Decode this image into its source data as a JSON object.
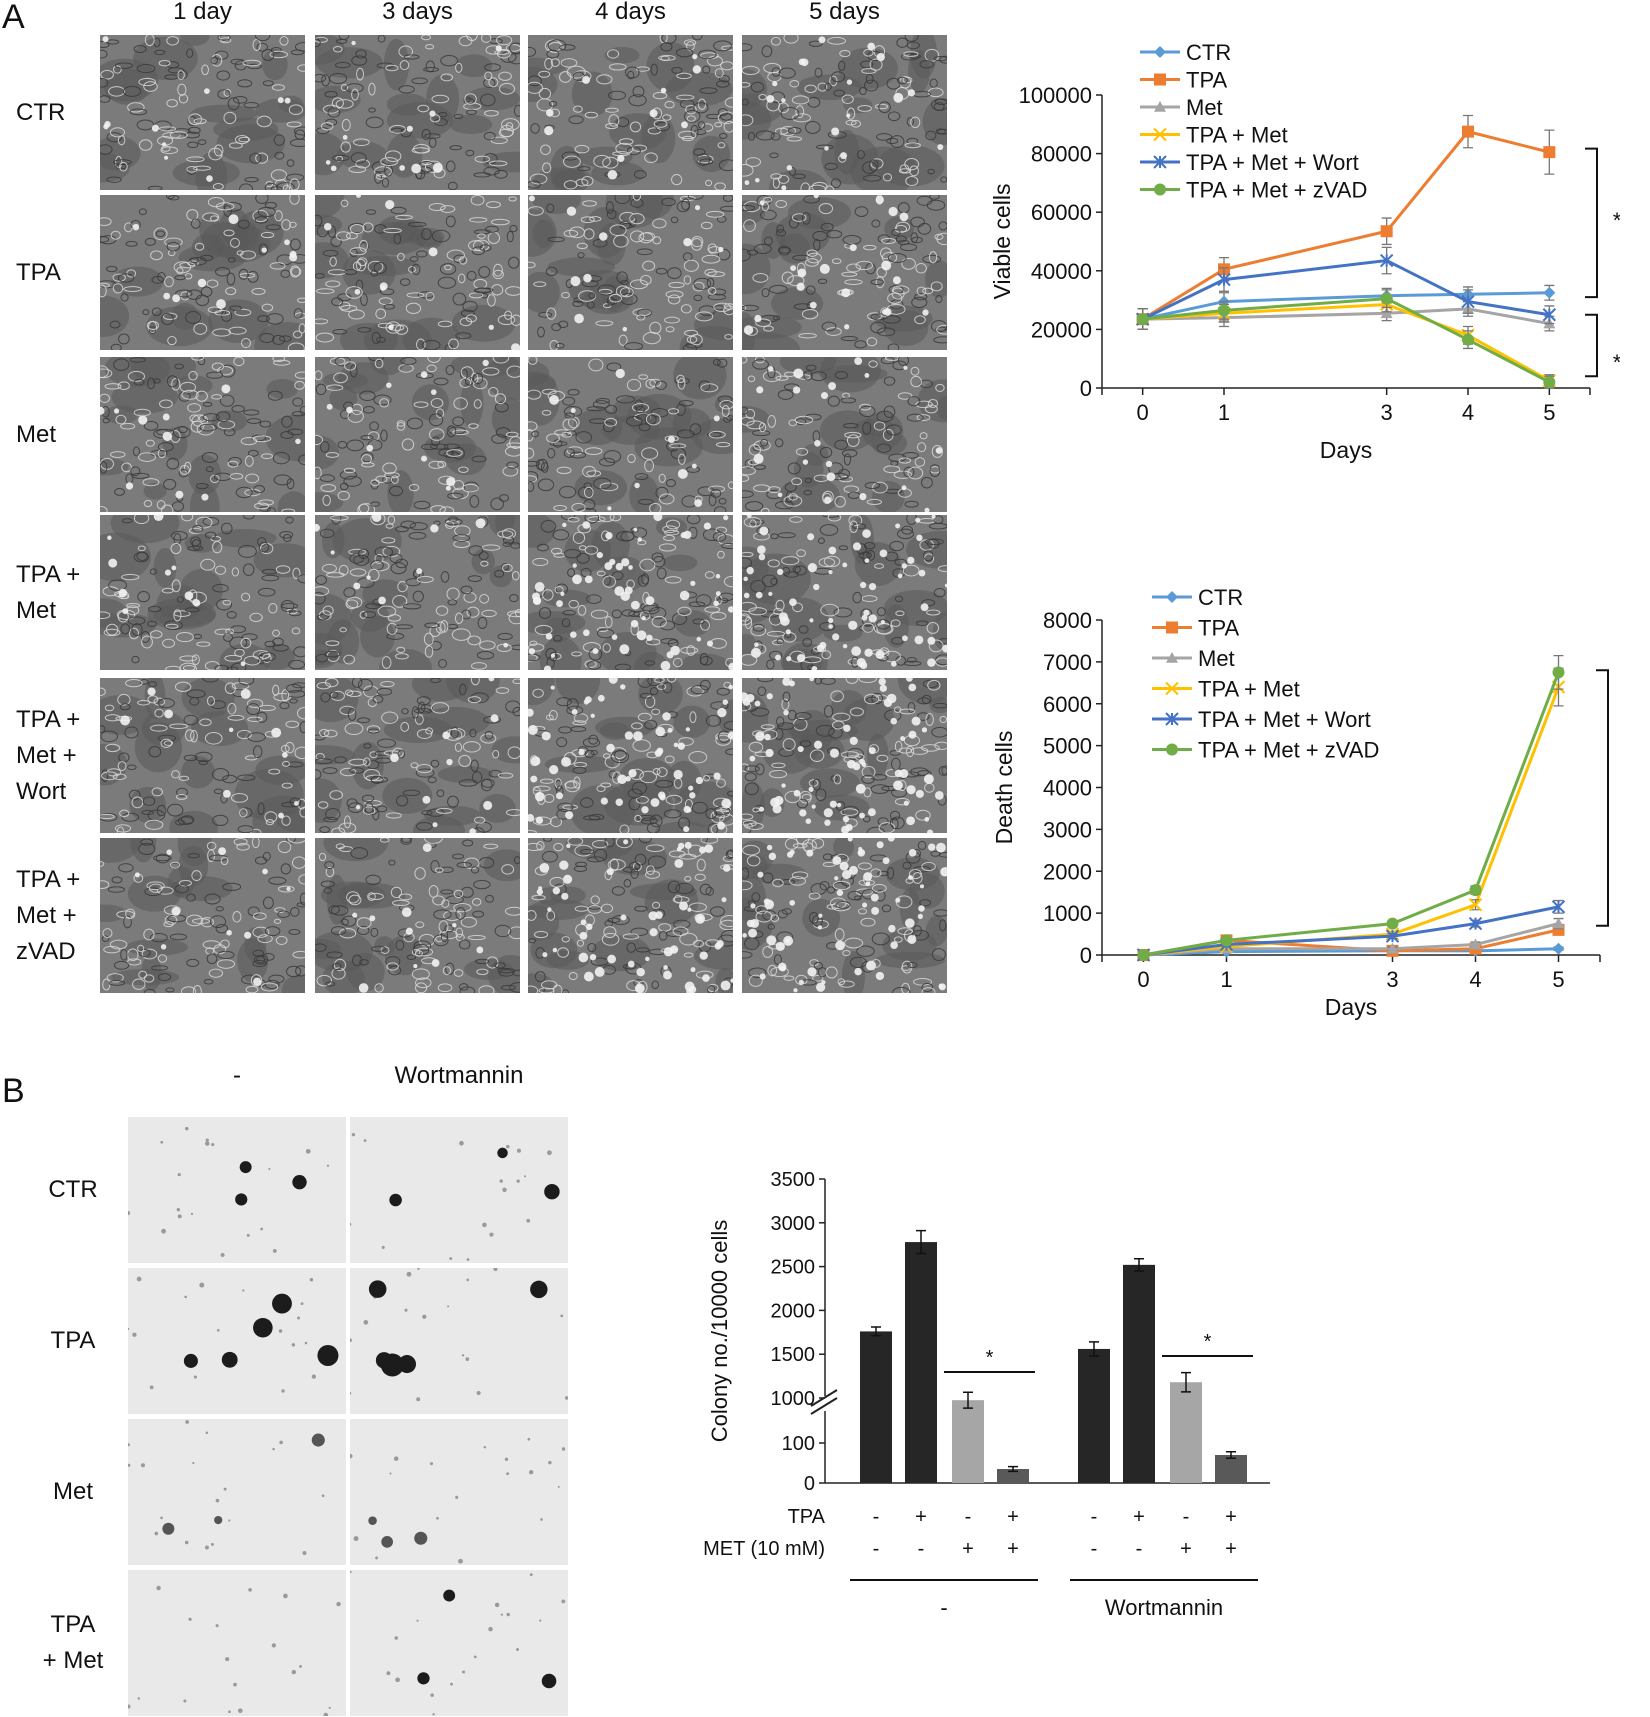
{
  "panel_a": {
    "letter": "A",
    "columns": [
      "1 day",
      "3 days",
      "4 days",
      "5 days"
    ],
    "rows": [
      {
        "lines": [
          "CTR"
        ]
      },
      {
        "lines": [
          "TPA"
        ]
      },
      {
        "lines": [
          "Met"
        ]
      },
      {
        "lines": [
          "TPA +",
          "Met"
        ]
      },
      {
        "lines": [
          "TPA +",
          "Met +",
          "Wort"
        ]
      },
      {
        "lines": [
          "TPA +",
          "Met +",
          "zVAD"
        ]
      }
    ]
  },
  "panel_b": {
    "letter": "B",
    "columns": [
      "-",
      "Wortmannin"
    ],
    "rows": [
      {
        "lines": [
          "CTR"
        ]
      },
      {
        "lines": [
          "TPA"
        ]
      },
      {
        "lines": [
          "Met"
        ]
      },
      {
        "lines": [
          "TPA",
          "+ Met"
        ]
      }
    ]
  },
  "colors": {
    "CTR": "#5b9bd5",
    "TPA": "#ed7d31",
    "Met": "#a5a5a5",
    "TPA + Met": "#ffc000",
    "TPA + Met + Wort": "#4472c4",
    "TPA + Met + zVAD": "#70ad47",
    "bar_dark": "#262626",
    "bar_light": "#a6a6a6",
    "bar_mid": "#595959"
  },
  "chart_data": [
    {
      "type": "line",
      "xlabel": "Days",
      "ylabel": "Viable cells",
      "x": [
        0,
        1,
        3,
        4,
        5
      ],
      "ylim": [
        0,
        100000
      ],
      "yticks": [
        "0",
        "20000",
        "40000",
        "60000",
        "80000",
        "100000"
      ],
      "legend": "top-left",
      "significance": [
        "*",
        "*"
      ],
      "series": [
        {
          "name": "CTR",
          "marker": "diamond",
          "values": [
            23500,
            29500,
            31500,
            32000,
            32500
          ],
          "err": [
            3500,
            3000,
            2500,
            2500,
            2500
          ]
        },
        {
          "name": "TPA",
          "marker": "square",
          "values": [
            23500,
            40500,
            53500,
            87500,
            80500
          ],
          "err": [
            3500,
            4000,
            4500,
            5500,
            7500
          ]
        },
        {
          "name": "Met",
          "marker": "triangle",
          "values": [
            23500,
            24000,
            25500,
            27000,
            22000
          ],
          "err": [
            3500,
            3000,
            2500,
            2500,
            2500
          ]
        },
        {
          "name": "TPA + Met",
          "marker": "x",
          "values": [
            23500,
            25500,
            28500,
            18000,
            2500
          ],
          "err": [
            3500,
            3000,
            2500,
            3000,
            2000
          ]
        },
        {
          "name": "TPA + Met + Wort",
          "marker": "star",
          "values": [
            23500,
            37000,
            43500,
            29500,
            25000
          ],
          "err": [
            3500,
            4000,
            4500,
            4000,
            3000
          ]
        },
        {
          "name": "TPA + Met + zVAD",
          "marker": "circle",
          "values": [
            23500,
            26500,
            30500,
            16500,
            2000
          ],
          "err": [
            3500,
            3000,
            3000,
            3000,
            2000
          ]
        }
      ]
    },
    {
      "type": "line",
      "xlabel": "Days",
      "ylabel": "Death cells",
      "x": [
        0,
        1,
        3,
        4,
        5
      ],
      "ylim": [
        0,
        8000
      ],
      "yticks": [
        "0",
        "1000",
        "2000",
        "3000",
        "4000",
        "5000",
        "6000",
        "7000",
        "8000"
      ],
      "legend": "top-left",
      "significance": [
        "*"
      ],
      "series": [
        {
          "name": "CTR",
          "marker": "diamond",
          "values": [
            0,
            80,
            100,
            100,
            150
          ],
          "err": [
            0,
            30,
            30,
            30,
            40
          ]
        },
        {
          "name": "TPA",
          "marker": "square",
          "values": [
            0,
            350,
            100,
            150,
            600
          ],
          "err": [
            0,
            40,
            40,
            40,
            100
          ]
        },
        {
          "name": "Met",
          "marker": "triangle",
          "values": [
            0,
            150,
            150,
            250,
            750
          ],
          "err": [
            0,
            40,
            40,
            60,
            120
          ]
        },
        {
          "name": "TPA + Met",
          "marker": "x",
          "values": [
            0,
            200,
            500,
            1200,
            6400
          ],
          "err": [
            0,
            50,
            60,
            120,
            450
          ]
        },
        {
          "name": "TPA + Met + Wort",
          "marker": "star",
          "values": [
            0,
            250,
            450,
            750,
            1150
          ],
          "err": [
            0,
            50,
            60,
            80,
            150
          ]
        },
        {
          "name": "TPA + Met + zVAD",
          "marker": "circle",
          "values": [
            0,
            350,
            750,
            1550,
            6750
          ],
          "err": [
            0,
            40,
            60,
            100,
            400
          ]
        }
      ]
    },
    {
      "type": "bar",
      "ylabel": "Colony no./10000 cells",
      "yticks_lower": [
        "0",
        "100"
      ],
      "yticks_upper": [
        "1000",
        "1500",
        "2000",
        "2500",
        "3000",
        "3500"
      ],
      "axis_break": true,
      "condition_labels": {
        "tpa": "TPA",
        "met": "MET (10 mM)"
      },
      "groups": [
        {
          "label": "-",
          "bars": [
            {
              "tpa": "-",
              "met": "-",
              "value": 1760,
              "err": 50,
              "color": "bar_dark"
            },
            {
              "tpa": "+",
              "met": "-",
              "value": 2780,
              "err": 130,
              "color": "bar_dark"
            },
            {
              "tpa": "-",
              "met": "+",
              "value": 975,
              "err": 90,
              "color": "bar_light"
            },
            {
              "tpa": "+",
              "met": "+",
              "value": 35,
              "err": 6,
              "color": "bar_mid"
            }
          ],
          "significance": "*"
        },
        {
          "label": "Wortmannin",
          "bars": [
            {
              "tpa": "-",
              "met": "-",
              "value": 1560,
              "err": 80,
              "color": "bar_dark"
            },
            {
              "tpa": "+",
              "met": "-",
              "value": 2520,
              "err": 70,
              "color": "bar_dark"
            },
            {
              "tpa": "-",
              "met": "+",
              "value": 1180,
              "err": 110,
              "color": "bar_light"
            },
            {
              "tpa": "+",
              "met": "+",
              "value": 70,
              "err": 8,
              "color": "bar_mid"
            }
          ],
          "significance": "*"
        }
      ]
    }
  ]
}
